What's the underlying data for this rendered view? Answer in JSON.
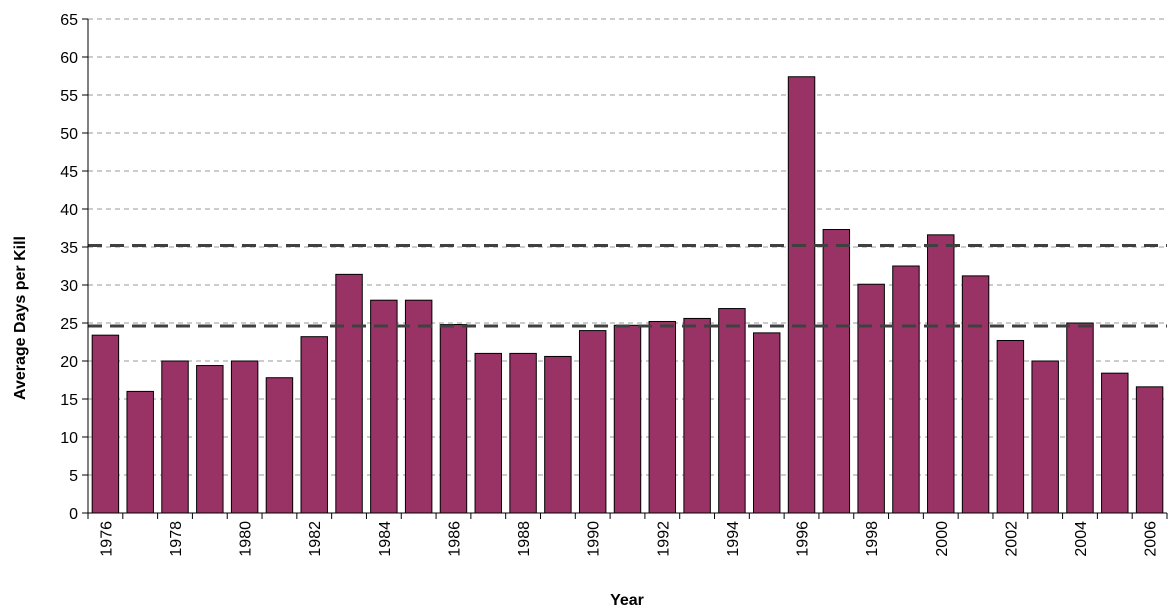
{
  "chart_data": {
    "type": "bar",
    "title": "",
    "xlabel": "Year",
    "ylabel": "Average Days per Kill",
    "ylim": [
      0,
      65
    ],
    "yticks": [
      0,
      5,
      10,
      15,
      20,
      25,
      30,
      35,
      40,
      45,
      50,
      55,
      60,
      65
    ],
    "grid": true,
    "legend": "none",
    "bar_color": "#993366",
    "reference_lines": [
      24.6,
      35.2
    ],
    "categories": [
      "1976",
      "1977",
      "1978",
      "1979",
      "1980",
      "1981",
      "1982",
      "1983",
      "1984",
      "1985",
      "1986",
      "1987",
      "1988",
      "1989",
      "1990",
      "1991",
      "1992",
      "1993",
      "1994",
      "1995",
      "1996",
      "1997",
      "1998",
      "1999",
      "2000",
      "2001",
      "2002",
      "2003",
      "2004",
      "2005",
      "2006"
    ],
    "tick_labels": [
      "1976",
      "1978",
      "1980",
      "1982",
      "1984",
      "1986",
      "1988",
      "1990",
      "1992",
      "1994",
      "1996",
      "1998",
      "2000",
      "2002",
      "2004",
      "2006"
    ],
    "values": [
      23.4,
      16.0,
      20.0,
      19.4,
      20.0,
      17.8,
      23.2,
      31.4,
      28.0,
      28.0,
      24.8,
      21.0,
      21.0,
      20.6,
      24.0,
      24.7,
      25.2,
      25.6,
      26.9,
      23.7,
      57.4,
      37.3,
      30.1,
      32.5,
      36.6,
      31.2,
      22.7,
      20.0,
      25.0,
      18.4,
      16.6
    ]
  }
}
